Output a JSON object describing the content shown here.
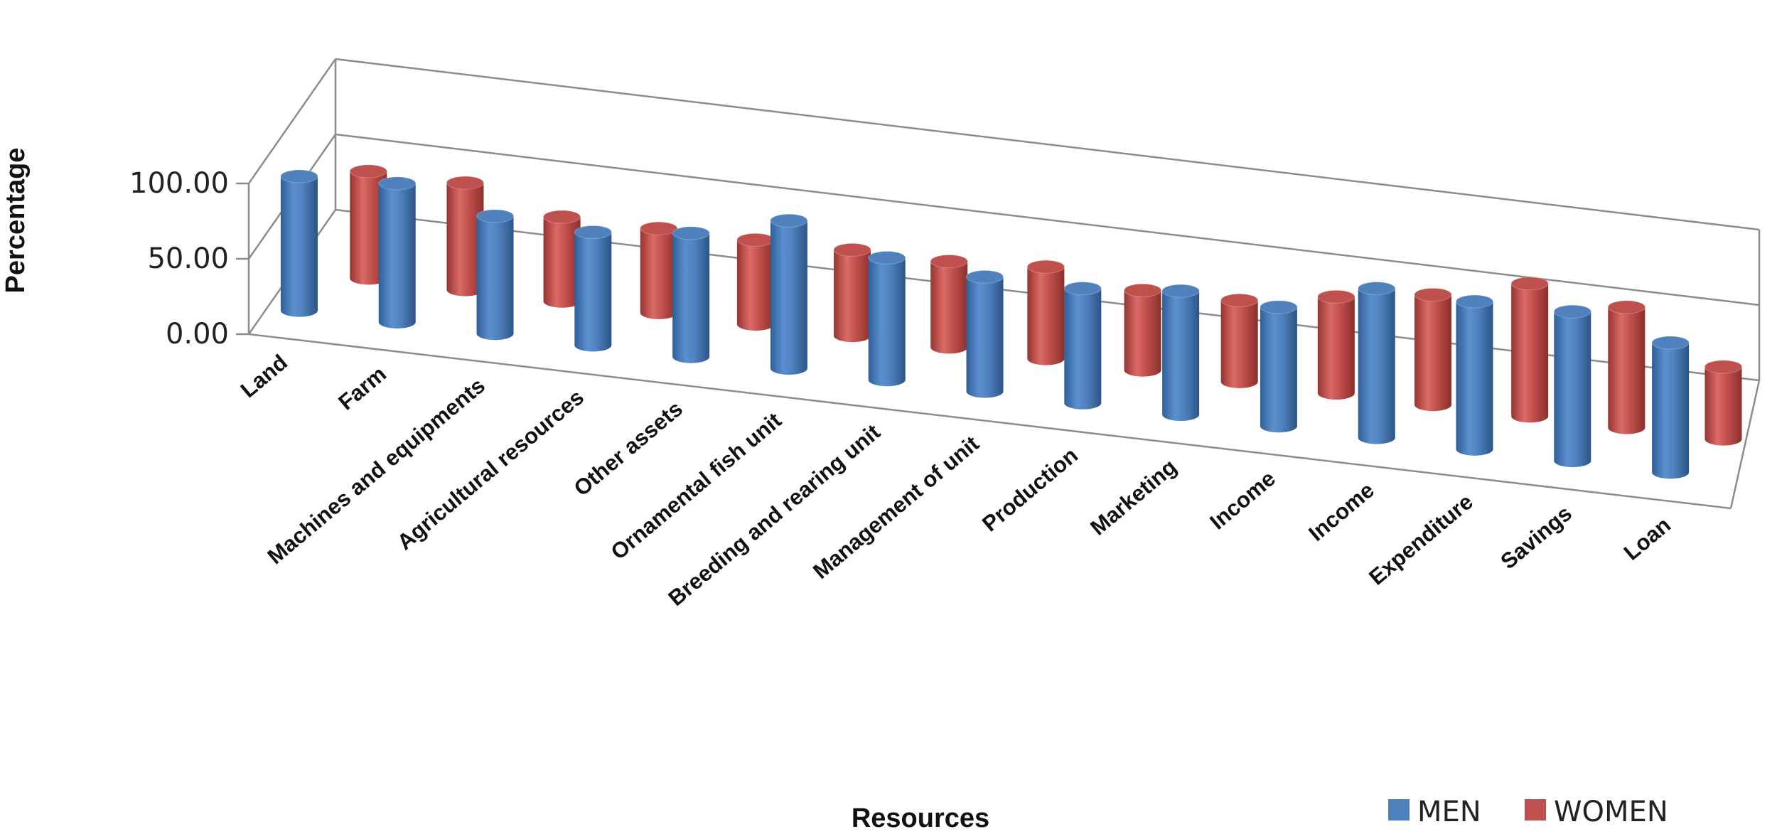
{
  "chart_data": {
    "type": "bar",
    "style": "3d-cylinder",
    "title": "",
    "xlabel": "Resources",
    "ylabel": "Percentage",
    "ylim": [
      0,
      100
    ],
    "yticks": [
      "0.00",
      "50.00",
      "100.00"
    ],
    "categories": [
      "Land",
      "Farm",
      "Machines and equipments",
      "Agricultural resources",
      "Other assets",
      "Ornamental fish unit",
      "Breeding and rearing unit",
      "Management of unit",
      "Production",
      "Marketing",
      "Income",
      "Income",
      "Expenditure",
      "Savings",
      "Loan"
    ],
    "series": [
      {
        "name": "MEN",
        "color": "#4f81bd",
        "values": [
          89,
          92,
          78,
          75,
          82,
          98,
          81,
          76,
          76,
          82,
          79,
          99,
          98,
          99,
          86
        ]
      },
      {
        "name": "WOMEN",
        "color": "#c0504d",
        "values": [
          71,
          71,
          56,
          56,
          56,
          57,
          57,
          61,
          53,
          54,
          64,
          73,
          88,
          80,
          48
        ]
      }
    ],
    "legend": {
      "position": "bottom-right"
    }
  }
}
